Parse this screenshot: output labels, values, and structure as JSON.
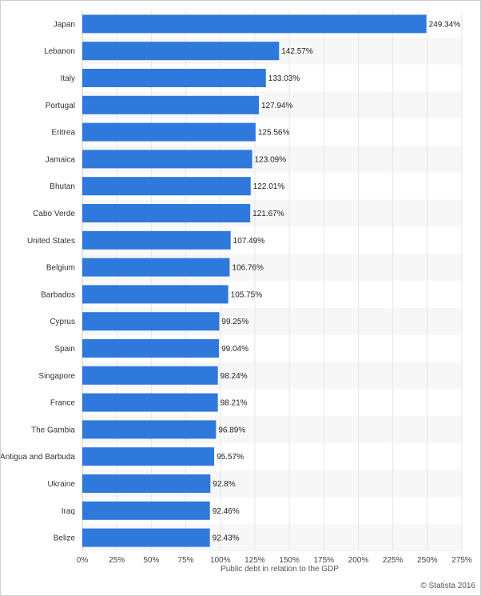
{
  "chart_data": {
    "type": "bar",
    "orientation": "horizontal",
    "categories": [
      "Japan",
      "Lebanon",
      "Italy",
      "Portugal",
      "Eritrea",
      "Jamaica",
      "Bhutan",
      "Cabo Verde",
      "United States",
      "Belgium",
      "Barbados",
      "Cyprus",
      "Spain",
      "Singapore",
      "France",
      "The Gambia",
      "Antigua and Barbuda",
      "Ukraine",
      "Iraq",
      "Belize"
    ],
    "values": [
      249.34,
      142.57,
      133.03,
      127.94,
      125.56,
      123.09,
      122.01,
      121.67,
      107.49,
      106.76,
      105.75,
      99.25,
      99.04,
      98.24,
      98.21,
      96.89,
      95.57,
      92.8,
      92.46,
      92.43
    ],
    "value_labels": [
      "249.34%",
      "142.57%",
      "133.03%",
      "127.94%",
      "125.56%",
      "123.09%",
      "122.01%",
      "121.67%",
      "107.49%",
      "106.76%",
      "105.75%",
      "99.25%",
      "99.04%",
      "98.24%",
      "98.21%",
      "96.89%",
      "95.57%",
      "92.8%",
      "92.46%",
      "92.43%"
    ],
    "xlabel": "Public debt in relation to the GDP",
    "xlim": [
      0,
      275
    ],
    "xticks": [
      0,
      25,
      50,
      75,
      100,
      125,
      150,
      175,
      200,
      225,
      250,
      275
    ],
    "xtick_labels": [
      "0%",
      "25%",
      "50%",
      "75%",
      "100%",
      "125%",
      "150%",
      "175%",
      "200%",
      "225%",
      "250%",
      "275%"
    ],
    "grid": true,
    "colors": {
      "bar": "#2f78dc",
      "alt_row": "#f7f7f7",
      "grid": "#e6e6e6",
      "axis": "#cccccc"
    }
  },
  "credit": "© Statista 2016"
}
